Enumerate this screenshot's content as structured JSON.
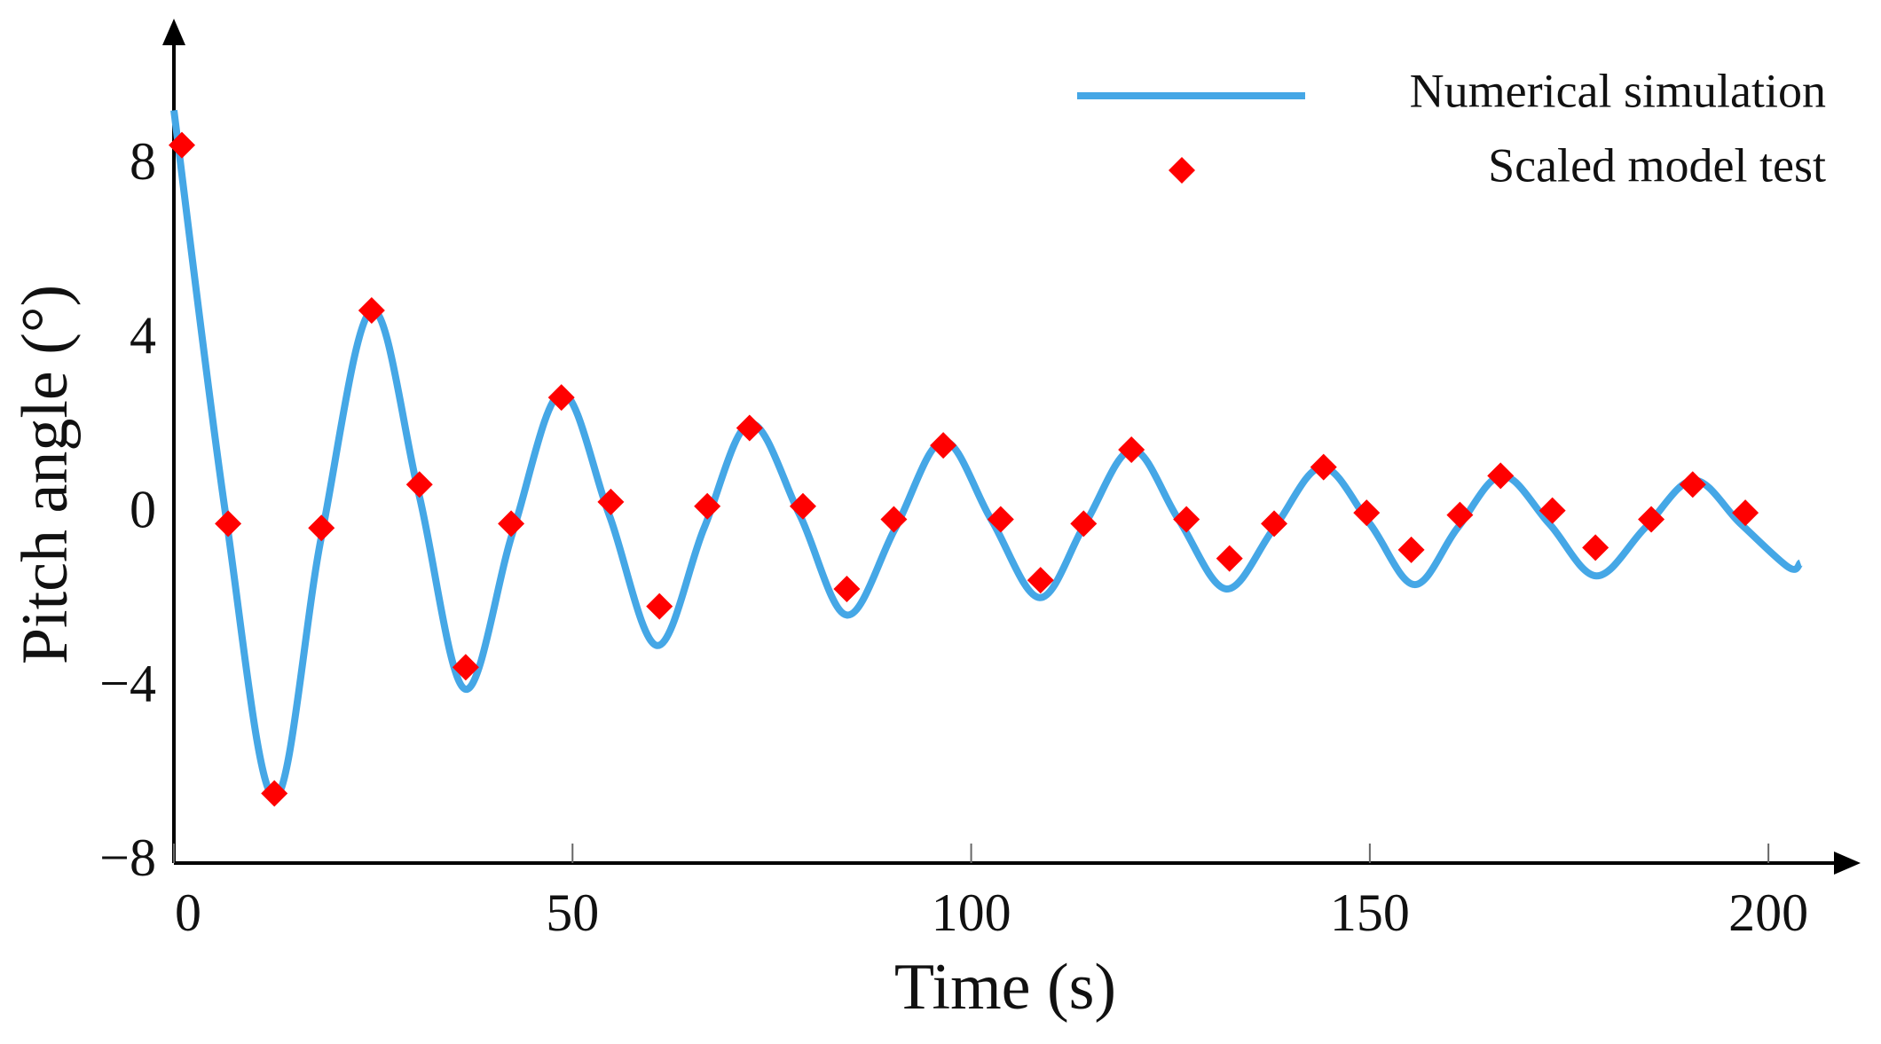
{
  "chart_data": {
    "type": "line_scatter",
    "x_label": "Time (s)",
    "y_label": "Pitch angle (°)",
    "xlim": [
      0,
      210
    ],
    "ylim": [
      -8,
      11
    ],
    "xticks": [
      0,
      50,
      100,
      150,
      200
    ],
    "yticks": [
      {
        "value": -8,
        "label": "−8"
      },
      {
        "value": -4,
        "label": "−4"
      },
      0,
      4,
      8
    ],
    "legend": "upper right",
    "series": [
      {
        "name": "Numerical simulation",
        "type": "line",
        "color": "#45a7e6",
        "x": [
          0,
          6.5,
          12.6,
          18.5,
          24.8,
          30.7,
          36.5,
          42.5,
          48.6,
          54.6,
          60.6,
          66.5,
          72.3,
          78.5,
          84.4,
          90.5,
          96.5,
          102.5,
          108.6,
          114.3,
          120.2,
          126,
          132,
          138,
          144,
          150,
          155.6,
          161,
          166.6,
          172.5,
          178.4,
          184.5,
          190.6,
          196.5,
          202.5,
          204
        ],
        "values": [
          9.3,
          0,
          -6.5,
          -0.5,
          4.7,
          0.5,
          -4.0,
          -0.4,
          2.8,
          0,
          -3.0,
          -0.3,
          2.1,
          0,
          -2.3,
          -0.3,
          1.7,
          -0.1,
          -1.9,
          -0.2,
          1.5,
          -0.1,
          -1.7,
          -0.3,
          1.1,
          -0.2,
          -1.6,
          -0.3,
          0.9,
          -0.2,
          -1.4,
          -0.3,
          0.8,
          -0.2,
          -1.2,
          -1.1
        ]
      },
      {
        "name": "Scaled model test",
        "type": "scatter",
        "color": "#ff0000",
        "x": [
          1,
          6.8,
          12.6,
          18.5,
          24.8,
          30.8,
          36.6,
          42.3,
          48.6,
          54.8,
          60.9,
          66.9,
          72.2,
          78.9,
          84.4,
          90.3,
          96.5,
          103.7,
          108.7,
          114.1,
          120.1,
          127.0,
          132.4,
          138.0,
          144.2,
          149.6,
          155.2,
          161.3,
          166.4,
          172.9,
          178.3,
          185.3,
          190.5,
          197.1
        ],
        "values": [
          8.5,
          -0.2,
          -6.4,
          -0.3,
          4.7,
          0.7,
          -3.5,
          -0.2,
          2.7,
          0.3,
          -2.1,
          0.2,
          2.0,
          0.2,
          -1.7,
          -0.1,
          1.6,
          -0.1,
          -1.5,
          -0.2,
          1.5,
          -0.1,
          -1.0,
          -0.2,
          1.1,
          0.05,
          -0.8,
          0,
          0.9,
          0.1,
          -0.75,
          -0.1,
          0.7,
          0.05
        ]
      }
    ]
  }
}
